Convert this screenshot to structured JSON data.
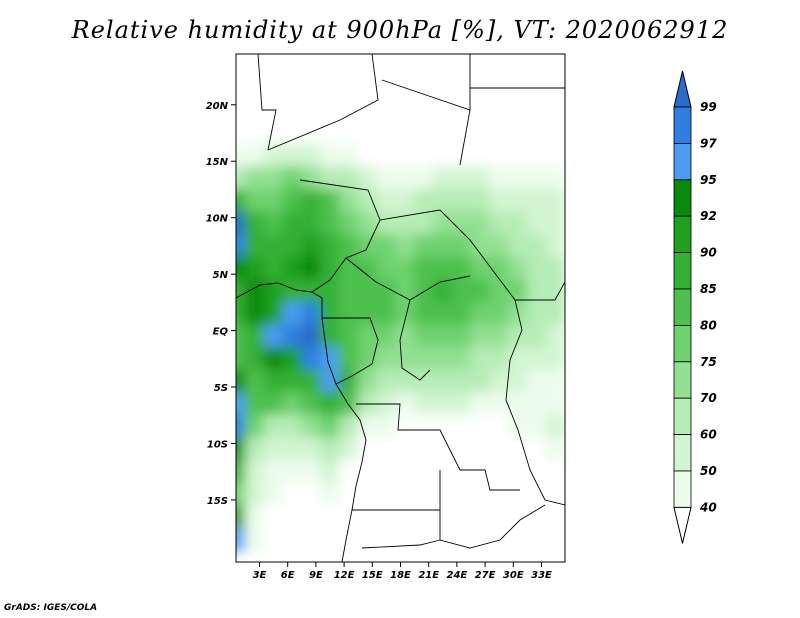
{
  "title": "Relative humidity at 900hPa [%], VT: 2020062912",
  "credit": "GrADS: IGES/COLA",
  "map": {
    "lat_labels": [
      "20N",
      "15N",
      "10N",
      "5N",
      "EQ",
      "5S",
      "10S",
      "15S"
    ],
    "lon_labels": [
      "3E",
      "6E",
      "9E",
      "12E",
      "15E",
      "18E",
      "21E",
      "24E",
      "27E",
      "30E",
      "33E"
    ]
  },
  "colorbar": {
    "levels": [
      "99",
      "97",
      "95",
      "92",
      "90",
      "85",
      "80",
      "75",
      "70",
      "60",
      "50",
      "40"
    ],
    "colors": [
      "#2a6cc8",
      "#2f7fe0",
      "#4b9cf0",
      "#0a8a0a",
      "#1fa01f",
      "#35b035",
      "#4dc04d",
      "#6ed26e",
      "#93e093",
      "#b6ecb6",
      "#d2f5d2",
      "#ecfcec",
      "#ffffff"
    ]
  },
  "chart_data": {
    "type": "heatmap",
    "title": "Relative humidity at 900hPa [%], VT: 2020062912",
    "units": "%",
    "variable": "Relative humidity at 900hPa",
    "valid_time": "2020062912",
    "contour_levels": [
      40,
      50,
      60,
      70,
      75,
      80,
      85,
      90,
      92,
      95,
      97,
      99
    ],
    "x_ticks": [
      "3E",
      "6E",
      "9E",
      "12E",
      "15E",
      "18E",
      "21E",
      "24E",
      "27E",
      "30E",
      "33E"
    ],
    "y_ticks": [
      "20N",
      "15N",
      "10N",
      "5N",
      "EQ",
      "5S",
      "10S",
      "15S"
    ],
    "xlim": [
      0.5,
      35.5
    ],
    "ylim": [
      -20.5,
      24.5
    ],
    "x_values": [
      0.5,
      2.5,
      4.5,
      6.5,
      8.5,
      10.5,
      12.5,
      14.5,
      16.5,
      18.5,
      20.5,
      22.5,
      24.5,
      26.5,
      28.5,
      30.5,
      32.5,
      34.5
    ],
    "y_values": [
      23.5,
      21.5,
      19.5,
      17.5,
      15.5,
      13.5,
      11.5,
      9.5,
      7.5,
      5.5,
      3.5,
      1.5,
      -0.5,
      -2.5,
      -4.5,
      -6.5,
      -8.5,
      -10.5,
      -12.5,
      -14.5,
      -16.5,
      -18.5
    ],
    "z_values": [
      [
        30,
        30,
        30,
        30,
        30,
        30,
        30,
        30,
        30,
        30,
        30,
        30,
        30,
        30,
        30,
        30,
        30,
        30
      ],
      [
        30,
        30,
        30,
        30,
        30,
        30,
        30,
        30,
        30,
        30,
        30,
        30,
        30,
        30,
        30,
        30,
        30,
        30
      ],
      [
        30,
        30,
        30,
        30,
        30,
        30,
        30,
        30,
        30,
        30,
        30,
        30,
        30,
        30,
        30,
        30,
        30,
        30
      ],
      [
        30,
        30,
        30,
        30,
        30,
        30,
        30,
        30,
        30,
        30,
        30,
        30,
        30,
        30,
        30,
        30,
        30,
        30
      ],
      [
        45,
        48,
        52,
        55,
        50,
        45,
        40,
        35,
        30,
        30,
        30,
        30,
        30,
        30,
        30,
        30,
        30,
        30
      ],
      [
        60,
        70,
        72,
        75,
        72,
        68,
        60,
        50,
        45,
        40,
        45,
        50,
        55,
        52,
        48,
        45,
        42,
        40
      ],
      [
        85,
        75,
        78,
        82,
        85,
        80,
        70,
        60,
        55,
        55,
        60,
        62,
        65,
        62,
        58,
        55,
        52,
        50
      ],
      [
        99,
        85,
        80,
        85,
        88,
        82,
        75,
        72,
        68,
        65,
        68,
        70,
        72,
        70,
        65,
        62,
        58,
        55
      ],
      [
        97,
        88,
        85,
        88,
        90,
        85,
        80,
        78,
        75,
        72,
        75,
        78,
        75,
        72,
        70,
        68,
        62,
        58
      ],
      [
        92,
        90,
        88,
        90,
        92,
        85,
        82,
        80,
        78,
        75,
        80,
        82,
        80,
        78,
        75,
        72,
        65,
        60
      ],
      [
        88,
        92,
        90,
        88,
        85,
        85,
        80,
        80,
        82,
        78,
        82,
        85,
        82,
        80,
        78,
        75,
        68,
        62
      ],
      [
        85,
        92,
        90,
        95,
        97,
        88,
        82,
        80,
        80,
        78,
        80,
        82,
        80,
        78,
        75,
        72,
        68,
        62
      ],
      [
        82,
        88,
        95,
        97,
        99,
        88,
        80,
        78,
        76,
        74,
        75,
        76,
        75,
        72,
        70,
        65,
        60,
        55
      ],
      [
        80,
        85,
        92,
        90,
        97,
        95,
        80,
        76,
        72,
        70,
        70,
        72,
        70,
        68,
        62,
        58,
        55,
        50
      ],
      [
        92,
        82,
        88,
        85,
        88,
        95,
        85,
        72,
        65,
        62,
        65,
        68,
        65,
        60,
        55,
        50,
        48,
        45
      ],
      [
        95,
        80,
        80,
        75,
        82,
        88,
        80,
        62,
        50,
        48,
        50,
        52,
        50,
        45,
        42,
        40,
        42,
        45
      ],
      [
        97,
        75,
        65,
        60,
        70,
        78,
        60,
        45,
        40,
        35,
        35,
        35,
        35,
        35,
        38,
        40,
        45,
        50
      ],
      [
        92,
        65,
        55,
        50,
        55,
        62,
        50,
        35,
        30,
        30,
        30,
        30,
        30,
        30,
        30,
        30,
        35,
        45
      ],
      [
        88,
        55,
        45,
        40,
        45,
        50,
        38,
        30,
        30,
        30,
        30,
        30,
        30,
        30,
        30,
        30,
        30,
        35
      ],
      [
        75,
        50,
        40,
        35,
        38,
        40,
        30,
        30,
        30,
        30,
        30,
        30,
        30,
        30,
        30,
        30,
        30,
        30
      ],
      [
        90,
        45,
        35,
        30,
        30,
        30,
        30,
        30,
        30,
        30,
        30,
        30,
        30,
        30,
        30,
        30,
        30,
        30
      ],
      [
        95,
        48,
        32,
        30,
        30,
        30,
        30,
        30,
        30,
        30,
        30,
        30,
        30,
        30,
        30,
        30,
        30,
        30
      ]
    ]
  }
}
